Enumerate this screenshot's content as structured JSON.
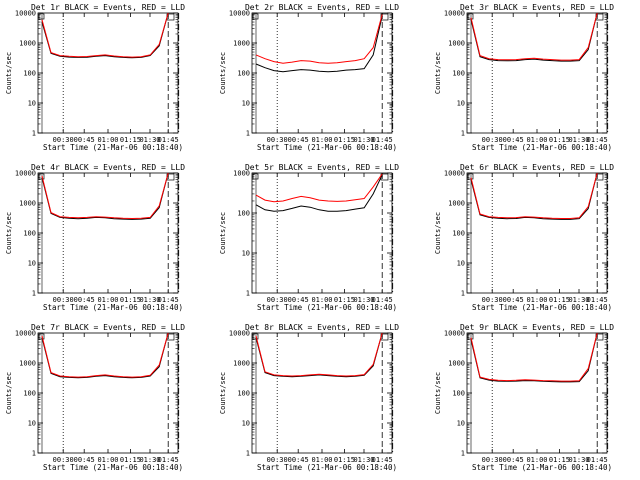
{
  "xlabel": "Start Time (21-Mar-06 00:18:40)",
  "ylabel": "Counts/sec",
  "x_ticks": [
    "00:30",
    "00:45",
    "01:00",
    "01:15",
    "01:30",
    "01:45"
  ],
  "y_ticks": [
    "1",
    "10",
    "100",
    "1000",
    "10000"
  ],
  "colors": {
    "events": "#000000",
    "lld": "#ff0000",
    "axis": "#000000"
  },
  "chart_data": [
    {
      "type": "line",
      "title": "Det 1r BLACK = Events, RED = LLD",
      "xlabel": "Start Time (21-Mar-06 00:18:40)",
      "ylabel": "Counts/sec",
      "yscale": "log",
      "ylim": [
        1,
        10000
      ],
      "series": [
        {
          "values": [
            5000,
            450,
            360,
            340,
            330,
            335,
            360,
            380,
            350,
            330,
            320,
            330,
            380,
            800,
            10000
          ]
        },
        {
          "values": [
            6000,
            480,
            380,
            360,
            350,
            355,
            380,
            400,
            370,
            350,
            340,
            350,
            400,
            900,
            10000
          ]
        }
      ]
    },
    {
      "type": "line",
      "title": "Det 2r BLACK = Events, RED = LLD",
      "xlabel": "Start Time (21-Mar-06 00:18:40)",
      "ylabel": "Counts/sec",
      "yscale": "log",
      "ylim": [
        1,
        10000
      ],
      "series": [
        {
          "values": [
            200,
            150,
            120,
            110,
            120,
            130,
            125,
            115,
            110,
            115,
            125,
            130,
            140,
            400,
            8000
          ]
        },
        {
          "values": [
            400,
            300,
            240,
            210,
            230,
            260,
            250,
            220,
            210,
            220,
            240,
            260,
            300,
            700,
            9000
          ]
        }
      ]
    },
    {
      "type": "line",
      "title": "Det 3r BLACK = Events, RED = LLD",
      "xlabel": "Start Time (21-Mar-06 00:18:40)",
      "ylabel": "Counts/sec",
      "yscale": "log",
      "ylim": [
        1,
        10000
      ],
      "series": [
        {
          "values": [
            6000,
            350,
            280,
            260,
            255,
            260,
            280,
            290,
            270,
            260,
            250,
            250,
            260,
            600,
            10000
          ]
        },
        {
          "values": [
            7000,
            380,
            300,
            280,
            275,
            280,
            300,
            310,
            290,
            280,
            270,
            270,
            280,
            700,
            10000
          ]
        }
      ]
    },
    {
      "type": "line",
      "title": "Det 4r BLACK = Events, RED = LLD",
      "xlabel": "Start Time (21-Mar-06 00:18:40)",
      "ylabel": "Counts/sec",
      "yscale": "log",
      "ylim": [
        1,
        10000
      ],
      "series": [
        {
          "values": [
            7000,
            450,
            330,
            310,
            300,
            310,
            330,
            320,
            300,
            290,
            285,
            290,
            310,
            700,
            10000
          ]
        },
        {
          "values": [
            8000,
            480,
            350,
            330,
            320,
            330,
            350,
            340,
            320,
            310,
            305,
            310,
            330,
            800,
            10000
          ]
        }
      ]
    },
    {
      "type": "line",
      "title": "Det 5r BLACK = Events, RED = LLD",
      "xlabel": "Start Time (21-Mar-06 00:18:40)",
      "ylabel": "Counts/sec",
      "yscale": "log",
      "ylim": [
        1,
        1000
      ],
      "series": [
        {
          "values": [
            160,
            120,
            110,
            115,
            130,
            150,
            140,
            120,
            110,
            110,
            115,
            125,
            135,
            300,
            900
          ]
        },
        {
          "values": [
            280,
            210,
            190,
            200,
            230,
            260,
            240,
            210,
            200,
            195,
            200,
            215,
            230,
            450,
            950
          ]
        }
      ]
    },
    {
      "type": "line",
      "title": "Det 6r BLACK = Events, RED = LLD",
      "xlabel": "Start Time (21-Mar-06 00:18:40)",
      "ylabel": "Counts/sec",
      "yscale": "log",
      "ylim": [
        1,
        10000
      ],
      "series": [
        {
          "values": [
            6000,
            400,
            330,
            310,
            300,
            305,
            330,
            320,
            300,
            290,
            285,
            285,
            300,
            650,
            10000
          ]
        },
        {
          "values": [
            7000,
            430,
            350,
            330,
            320,
            325,
            350,
            340,
            320,
            310,
            305,
            305,
            320,
            750,
            10000
          ]
        }
      ]
    },
    {
      "type": "line",
      "title": "Det 7r BLACK = Events, RED = LLD",
      "xlabel": "Start Time (21-Mar-06 00:18:40)",
      "ylabel": "Counts/sec",
      "yscale": "log",
      "ylim": [
        1,
        10000
      ],
      "series": [
        {
          "values": [
            7000,
            450,
            350,
            330,
            320,
            330,
            360,
            380,
            350,
            330,
            320,
            330,
            370,
            750,
            10000
          ]
        },
        {
          "values": [
            8000,
            480,
            370,
            350,
            340,
            350,
            380,
            400,
            370,
            350,
            340,
            350,
            390,
            850,
            10000
          ]
        }
      ]
    },
    {
      "type": "line",
      "title": "Det 8r BLACK = Events, RED = LLD",
      "xlabel": "Start Time (21-Mar-06 00:18:40)",
      "ylabel": "Counts/sec",
      "yscale": "log",
      "ylim": [
        1,
        10000
      ],
      "series": [
        {
          "values": [
            7000,
            480,
            380,
            360,
            350,
            360,
            380,
            400,
            380,
            360,
            350,
            360,
            390,
            800,
            10000
          ]
        },
        {
          "values": [
            8000,
            510,
            400,
            380,
            370,
            380,
            400,
            420,
            400,
            380,
            370,
            380,
            410,
            900,
            10000
          ]
        }
      ]
    },
    {
      "type": "line",
      "title": "Det 9r BLACK = Events, RED = LLD",
      "xlabel": "Start Time (21-Mar-06 00:18:40)",
      "ylabel": "Counts/sec",
      "yscale": "log",
      "ylim": [
        1,
        10000
      ],
      "series": [
        {
          "values": [
            6000,
            320,
            270,
            250,
            245,
            250,
            260,
            255,
            245,
            240,
            235,
            235,
            240,
            550,
            10000
          ]
        },
        {
          "values": [
            7000,
            340,
            285,
            265,
            260,
            265,
            275,
            270,
            260,
            255,
            250,
            250,
            255,
            650,
            10000
          ]
        }
      ]
    }
  ]
}
